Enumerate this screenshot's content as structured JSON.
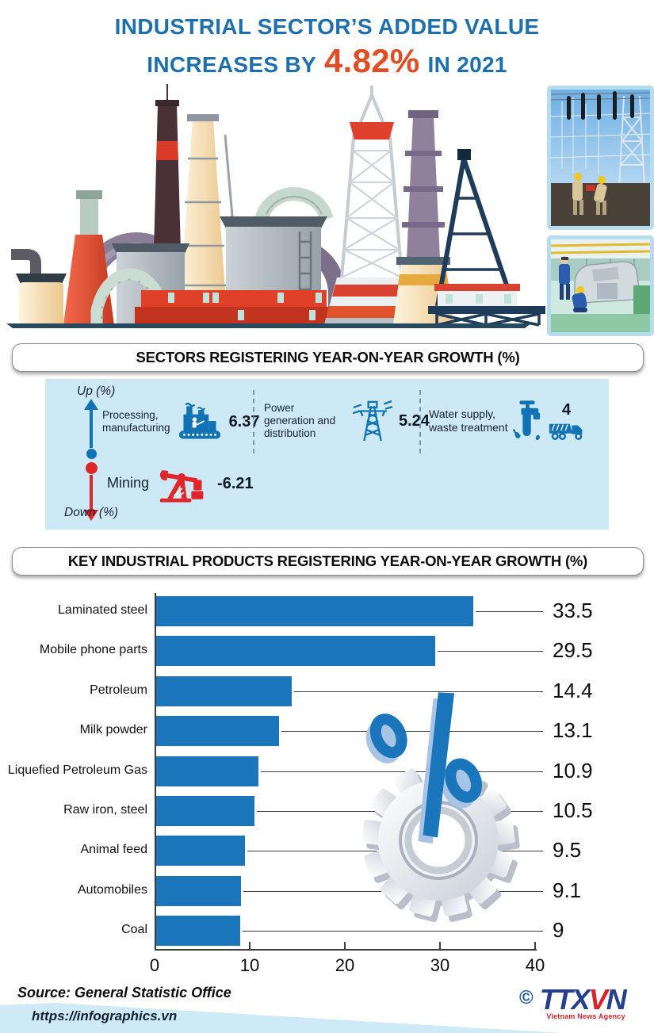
{
  "title": {
    "line1": "INDUSTRIAL SECTOR’S ADDED VALUE",
    "line2_prefix": "INCREASES BY",
    "highlight": "4.82%",
    "line2_suffix": "IN 2021"
  },
  "section_headers": {
    "sectors": "SECTORS REGISTERING YEAR-ON-YEAR GROWTH (%)",
    "products": "KEY INDUSTRIAL PRODUCTS REGISTERING YEAR-ON-YEAR GROWTH (%)"
  },
  "sector_growth": {
    "up_label": "Up (%)",
    "down_label": "Down (%)",
    "items": [
      {
        "name": "Processing,\nmanufacturing",
        "value": "6.37",
        "icon": "factory-icon",
        "direction": "up"
      },
      {
        "name": "Power\ngeneration and\ndistribution",
        "value": "5.24",
        "icon": "power-pylon-icon",
        "direction": "up"
      },
      {
        "name": "Water supply,\nwaste treatment",
        "value": "4",
        "icon": "water-faucet-truck-icon",
        "direction": "up"
      },
      {
        "name": "Mining",
        "value": "-6.21",
        "icon": "oil-pump-icon",
        "direction": "down"
      }
    ]
  },
  "chart_data": {
    "type": "bar",
    "orientation": "horizontal",
    "title": "KEY INDUSTRIAL PRODUCTS REGISTERING YEAR-ON-YEAR GROWTH (%)",
    "categories": [
      "Laminated steel",
      "Mobile phone parts",
      "Petroleum",
      "Milk powder",
      "Liquefied Petroleum Gas",
      "Raw iron, steel",
      "Animal feed",
      "Automobiles",
      "Coal"
    ],
    "values": [
      33.5,
      29.5,
      14.4,
      13.1,
      10.9,
      10.5,
      9.5,
      9.1,
      9
    ],
    "value_labels": [
      "33.5",
      "29.5",
      "14.4",
      "13.1",
      "10.9",
      "10.5",
      "9.5",
      "9.1",
      "9"
    ],
    "xlabel": "",
    "ylabel": "",
    "xlim": [
      0,
      40
    ],
    "x_ticks": [
      0,
      10,
      20,
      30,
      40
    ],
    "grid": false,
    "legend": null,
    "bar_color": "#1b75bb"
  },
  "footer": {
    "source": "Source: General Statistic Office",
    "url": "https://infographics.vn",
    "copyright": "©",
    "agency_logo_part1": "TTX",
    "agency_logo_part2": "V",
    "agency_logo_part3": "N",
    "agency_name": "Vietnam News Agency"
  },
  "colors": {
    "title_blue": "#1d70ad",
    "highlight_orange": "#e14e26",
    "bar_blue": "#1b75bb",
    "sector_box_bg": "#cde9f5",
    "up_blue": "#1173b5",
    "down_red": "#e0252b",
    "agency_blue": "#24408e",
    "agency_red": "#d8232a"
  }
}
